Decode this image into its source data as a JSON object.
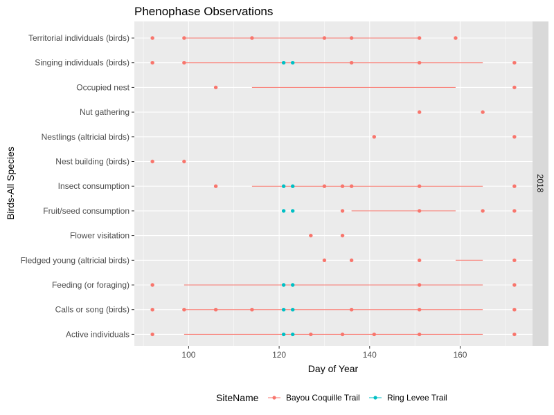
{
  "chart_data": {
    "type": "scatter",
    "title": "Phenophase Observations",
    "xlabel": "Day of Year",
    "ylabel": "Birds-All Species",
    "xlim": [
      88,
      176
    ],
    "x_ticks": [
      100,
      120,
      140,
      160
    ],
    "facet_label": "2018",
    "legend": {
      "title": "SiteName",
      "position": "bottom",
      "entries": [
        {
          "name": "Bayou Coquille Trail",
          "color": "#F8766D"
        },
        {
          "name": "Ring Levee Trail",
          "color": "#00BFC4"
        }
      ]
    },
    "categories": [
      "Territorial individuals (birds)",
      "Singing individuals (birds)",
      "Occupied nest",
      "Nut gathering",
      "Nestlings (altricial birds)",
      "Nest building (birds)",
      "Insect consumption",
      "Fruit/seed consumption",
      "Flower visitation",
      "Fledged young (altricial birds)",
      "Feeding (or foraging)",
      "Calls or song (birds)",
      "Active individuals"
    ],
    "series": [
      {
        "name": "Bayou Coquille Trail",
        "color": "#F8766D",
        "points": [
          {
            "category": "Territorial individuals (birds)",
            "x": [
              92,
              99,
              114,
              130,
              136,
              151,
              159
            ]
          },
          {
            "category": "Singing individuals (birds)",
            "x": [
              92,
              99,
              136,
              151,
              172
            ]
          },
          {
            "category": "Occupied nest",
            "x": [
              106,
              172
            ]
          },
          {
            "category": "Nut gathering",
            "x": [
              151,
              165
            ]
          },
          {
            "category": "Nestlings (altricial birds)",
            "x": [
              141,
              172
            ]
          },
          {
            "category": "Nest building (birds)",
            "x": [
              92,
              99
            ]
          },
          {
            "category": "Insect consumption",
            "x": [
              106,
              130,
              134,
              136,
              151,
              172
            ]
          },
          {
            "category": "Fruit/seed consumption",
            "x": [
              134,
              151,
              165,
              172
            ]
          },
          {
            "category": "Flower visitation",
            "x": [
              127,
              134
            ]
          },
          {
            "category": "Fledged young (altricial birds)",
            "x": [
              130,
              136,
              151,
              172
            ]
          },
          {
            "category": "Feeding (or foraging)",
            "x": [
              92,
              151,
              172
            ]
          },
          {
            "category": "Calls or song (birds)",
            "x": [
              92,
              99,
              106,
              114,
              136,
              151,
              172
            ]
          },
          {
            "category": "Active individuals",
            "x": [
              92,
              127,
              134,
              141,
              151,
              172
            ]
          }
        ],
        "segments": [
          {
            "category": "Territorial individuals (birds)",
            "x": [
              99,
              151
            ]
          },
          {
            "category": "Singing individuals (birds)",
            "x": [
              99,
              165
            ]
          },
          {
            "category": "Occupied nest",
            "x": [
              114,
              159
            ]
          },
          {
            "category": "Insect consumption",
            "x": [
              114,
              165
            ]
          },
          {
            "category": "Fruit/seed consumption",
            "x": [
              136,
              159
            ]
          },
          {
            "category": "Fledged young (altricial birds)",
            "x": [
              159,
              165
            ]
          },
          {
            "category": "Feeding (or foraging)",
            "x": [
              99,
              165
            ]
          },
          {
            "category": "Calls or song (birds)",
            "x": [
              99,
              165
            ]
          },
          {
            "category": "Active individuals",
            "x": [
              99,
              165
            ]
          }
        ]
      },
      {
        "name": "Ring Levee Trail",
        "color": "#00BFC4",
        "points": [
          {
            "category": "Singing individuals (birds)",
            "x": [
              121,
              123
            ]
          },
          {
            "category": "Insect consumption",
            "x": [
              121,
              123
            ]
          },
          {
            "category": "Fruit/seed consumption",
            "x": [
              121,
              123
            ]
          },
          {
            "category": "Feeding (or foraging)",
            "x": [
              121,
              123
            ]
          },
          {
            "category": "Calls or song (birds)",
            "x": [
              121,
              123
            ]
          },
          {
            "category": "Active individuals",
            "x": [
              121,
              123
            ]
          }
        ],
        "segments": []
      }
    ]
  }
}
